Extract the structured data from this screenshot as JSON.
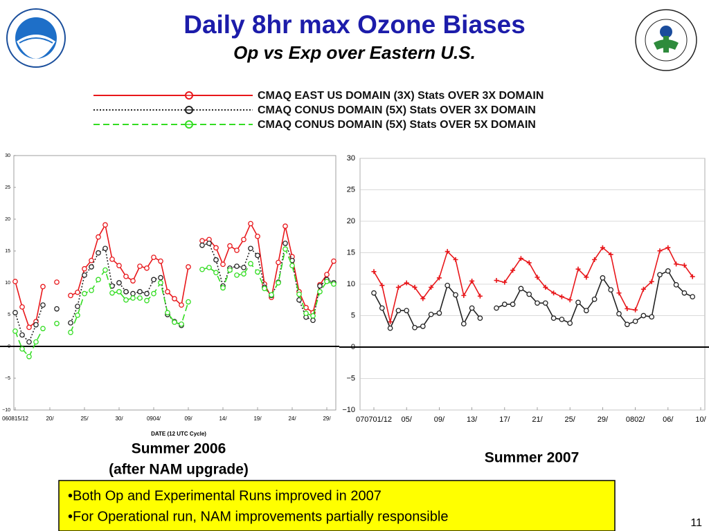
{
  "slide": {
    "title": "Daily 8hr max Ozone Biases",
    "subtitle": "Op vs Exp over Eastern U.S.",
    "bullets": [
      "•Both Op and Experimental Runs improved in 2007",
      "•For Operational run, NAM improvements partially responsible"
    ],
    "page_number": 11
  },
  "chart_data": [
    {
      "type": "line",
      "caption": "Summer 2006",
      "caption_note": "(after NAM upgrade)",
      "xlabel": "DATE (12 UTC Cycle)",
      "categories": [
        "060815/12",
        null,
        null,
        null,
        null,
        "20/",
        null,
        null,
        null,
        null,
        "25/",
        null,
        null,
        null,
        null,
        "30/",
        null,
        null,
        null,
        null,
        "0904/",
        null,
        null,
        null,
        null,
        "09/",
        null,
        null,
        null,
        null,
        "14/",
        null,
        null,
        null,
        null,
        "19/",
        null,
        null,
        null,
        null,
        "24/",
        null,
        null,
        null,
        null,
        "29/",
        null
      ],
      "ylim": [
        -10,
        30
      ],
      "yticks": [
        {
          "value": -10,
          "label": "−10"
        },
        {
          "value": -5,
          "label": "−5"
        },
        0,
        5,
        10,
        15,
        20,
        25,
        30
      ],
      "grid": false,
      "series": [
        {
          "name": "CMAQ EAST US DOMAIN (3X) Stats OVER 3X DOMAIN",
          "color": "#e8161a",
          "linestyle": "solid",
          "marker": "circle",
          "values": [
            10.2,
            6.2,
            3.0,
            3.9,
            9.4,
            null,
            10.1,
            null,
            8.0,
            8.5,
            12.2,
            13.5,
            17.2,
            19.1,
            13.7,
            12.7,
            11.0,
            10.3,
            12.6,
            12.3,
            14.0,
            13.4,
            8.6,
            7.5,
            6.5,
            12.5,
            null,
            16.6,
            16.8,
            15.5,
            12.9,
            15.8,
            15.1,
            16.8,
            19.3,
            17.3,
            9.8,
            7.7,
            13.2,
            18.9,
            14.1,
            8.6,
            6.1,
            5.3,
            9.7,
            11.3,
            13.4
          ]
        },
        {
          "name": "CMAQ CONUS DOMAIN (5X) Stats OVER 3X DOMAIN",
          "color": "#222222",
          "linestyle": "dotted",
          "marker": "circle",
          "values": [
            5.3,
            1.8,
            0.7,
            3.4,
            6.5,
            null,
            5.9,
            null,
            3.7,
            6.3,
            11.2,
            12.5,
            14.7,
            15.4,
            9.5,
            10.0,
            8.6,
            8.3,
            8.6,
            8.3,
            10.5,
            10.8,
            5.0,
            3.9,
            3.3,
            null,
            null,
            15.9,
            16.2,
            13.6,
            9.5,
            12.3,
            12.6,
            12.4,
            15.4,
            14.3,
            9.3,
            8.0,
            10.1,
            16.2,
            13.5,
            7.3,
            4.6,
            4.1,
            9.5,
            10.5,
            10.0
          ]
        },
        {
          "name": "CMAQ CONUS DOMAIN (5X) Stats OVER 5X DOMAIN",
          "color": "#33dd22",
          "linestyle": "dashed",
          "marker": "circle",
          "values": [
            2.4,
            -0.4,
            -1.6,
            0.7,
            2.8,
            null,
            3.6,
            null,
            2.2,
            4.9,
            8.3,
            8.8,
            10.5,
            12.0,
            8.4,
            8.6,
            7.3,
            7.6,
            7.6,
            7.2,
            8.3,
            10.0,
            5.3,
            3.8,
            3.5,
            7.0,
            null,
            12.1,
            12.4,
            11.6,
            9.2,
            12.0,
            11.2,
            11.4,
            13.0,
            11.7,
            9.1,
            8.1,
            10.0,
            15.3,
            12.7,
            8.2,
            5.2,
            4.8,
            8.6,
            10.2,
            9.8
          ]
        }
      ]
    },
    {
      "type": "line",
      "caption": "Summer 2007",
      "categories": [
        "070701/12",
        null,
        null,
        null,
        "05/",
        null,
        null,
        null,
        "09/",
        null,
        null,
        null,
        "13/",
        null,
        null,
        null,
        "17/",
        null,
        null,
        null,
        "21/",
        null,
        null,
        null,
        "25/",
        null,
        null,
        null,
        "29/",
        null,
        null,
        null,
        "0802/",
        null,
        null,
        null,
        "06/",
        null,
        null,
        null,
        "10/"
      ],
      "ylim": [
        -10,
        30
      ],
      "yticks": [
        {
          "value": -10,
          "label": "−10"
        },
        {
          "value": -5,
          "label": "−5"
        },
        0,
        5,
        10,
        15,
        20,
        25,
        30
      ],
      "grid": true,
      "series": [
        {
          "color": "#e8161a",
          "linestyle": "solid",
          "marker": "plus",
          "values": [
            12.0,
            9.8,
            4.0,
            9.5,
            10.2,
            9.5,
            7.7,
            9.5,
            11.0,
            15.2,
            13.9,
            8.2,
            10.5,
            8.1,
            null,
            10.6,
            10.3,
            12.2,
            14.1,
            13.4,
            11.1,
            9.5,
            8.6,
            8.0,
            7.5,
            12.4,
            11.1,
            13.9,
            15.8,
            14.7,
            8.6,
            6.1,
            5.9,
            9.2,
            10.4,
            15.3,
            15.8,
            13.2,
            13.0,
            11.2,
            null
          ]
        },
        {
          "color": "#222222",
          "linestyle": "solid",
          "marker": "circle",
          "values": [
            8.6,
            6.2,
            3.0,
            5.8,
            5.8,
            3.1,
            3.3,
            5.2,
            5.4,
            9.8,
            8.3,
            3.7,
            6.2,
            4.6,
            null,
            6.2,
            6.8,
            6.8,
            9.3,
            8.4,
            7.0,
            7.0,
            4.6,
            4.4,
            3.8,
            7.1,
            5.8,
            7.6,
            11.0,
            9.1,
            5.3,
            3.6,
            4.1,
            5.0,
            4.8,
            11.5,
            12.1,
            9.9,
            8.6,
            8.0,
            null
          ]
        }
      ]
    }
  ]
}
